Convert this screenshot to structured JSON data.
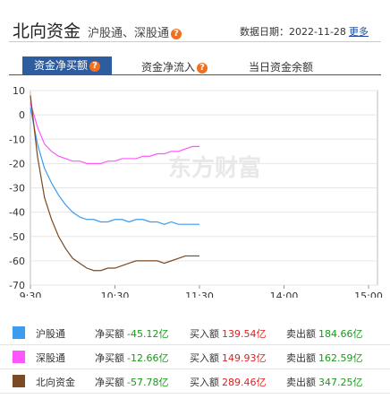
{
  "header": {
    "title": "北向资金",
    "subtitle": "沪股通、深股通",
    "help_icon": "?",
    "date_label": "数据日期：",
    "date": "2022-11-28",
    "more": "更多"
  },
  "tabs": [
    "资金净买额",
    "资金净流入",
    "当日资金余额"
  ],
  "chart_data": {
    "type": "line",
    "watermark": "东方财富",
    "x": [
      0,
      5,
      10,
      15,
      20,
      25,
      30,
      35,
      40,
      45,
      50,
      55,
      60,
      65,
      70,
      75,
      80,
      85,
      90,
      95,
      100,
      105,
      110,
      115,
      120
    ],
    "xlim": [
      0,
      240
    ],
    "xticks": [
      {
        "value": 0,
        "label": "9:30"
      },
      {
        "value": 60,
        "label": "10:30"
      },
      {
        "value": 120,
        "label": "11:30"
      },
      {
        "value": 180,
        "label": "14:00"
      },
      {
        "value": 240,
        "label": "15:00"
      }
    ],
    "ylim": [
      -70,
      10
    ],
    "yticks": [
      10,
      0,
      -10,
      -20,
      -30,
      -40,
      -50,
      -60,
      -70
    ],
    "grid": true,
    "series": [
      {
        "name": "沪股通",
        "color": "#3d9cf0",
        "values": [
          3,
          -12,
          -22,
          -28,
          -33,
          -37,
          -40,
          -42,
          -43,
          -43,
          -44,
          -44,
          -43,
          -43,
          -44,
          -43,
          -43,
          -44,
          -44,
          -45,
          -44,
          -45,
          -45,
          -45,
          -45
        ]
      },
      {
        "name": "深股通",
        "color": "#ff55ff",
        "values": [
          5,
          -5,
          -12,
          -15,
          -17,
          -18,
          -19,
          -19,
          -20,
          -20,
          -20,
          -19,
          -19,
          -18,
          -18,
          -18,
          -17,
          -17,
          -16,
          -16,
          -15,
          -15,
          -14,
          -13,
          -13
        ]
      },
      {
        "name": "北向资金",
        "color": "#7a4a22",
        "values": [
          8,
          -17,
          -34,
          -43,
          -50,
          -55,
          -59,
          -61,
          -63,
          -64,
          -64,
          -63,
          -63,
          -62,
          -61,
          -60,
          -60,
          -60,
          -60,
          -61,
          -60,
          -59,
          -58,
          -58,
          -58
        ]
      }
    ]
  },
  "legend_table": {
    "rows": [
      {
        "net_label": "净买额",
        "net": "-45.12亿",
        "buy_label": "买入额",
        "buy": "139.54亿",
        "sell_label": "卖出额",
        "sell": "184.66亿"
      },
      {
        "net_label": "净买额",
        "net": "-12.66亿",
        "buy_label": "买入额",
        "buy": "149.93亿",
        "sell_label": "卖出额",
        "sell": "162.59亿"
      },
      {
        "net_label": "净买额",
        "net": "-57.78亿",
        "buy_label": "买入额",
        "buy": "289.46亿",
        "sell_label": "卖出额",
        "sell": "347.25亿"
      }
    ]
  }
}
